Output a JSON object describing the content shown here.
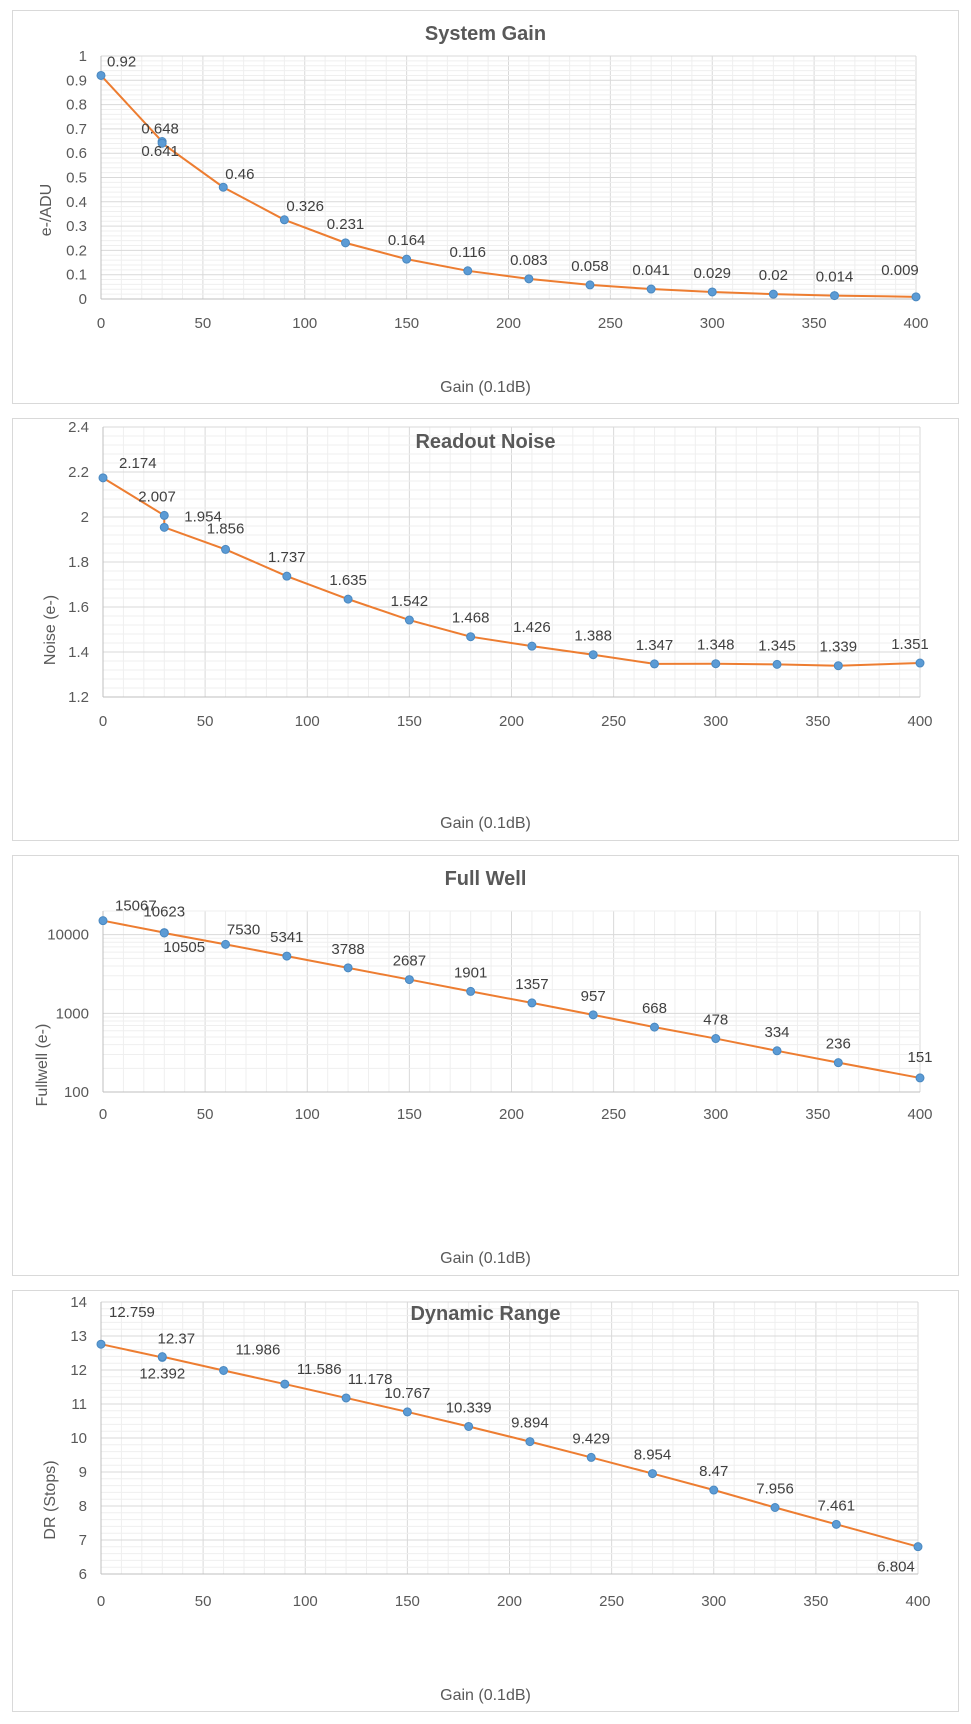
{
  "colors": {
    "line": "#ED7D31",
    "marker": "#5B9BD5",
    "grid": "#D9D9D9",
    "minor_grid": "#EFEFEF",
    "axis": "#BFBFBF",
    "text": "#595959"
  },
  "chart_data": [
    {
      "type": "line",
      "title": "System Gain",
      "xlabel": "Gain (0.1dB)",
      "ylabel": "e-/ADU",
      "xlim": [
        0,
        400
      ],
      "ylim": [
        0,
        1
      ],
      "xticks": [
        0,
        50,
        100,
        150,
        200,
        250,
        300,
        350,
        400
      ],
      "yticks": [
        0,
        0.1,
        0.2,
        0.3,
        0.4,
        0.5,
        0.6,
        0.7,
        0.8,
        0.9,
        1
      ],
      "ytick_labels": [
        "0",
        "0.1",
        "0.2",
        "0.3",
        "0.4",
        "0.5",
        "0.6",
        "0.7",
        "0.8",
        "0.9",
        "1"
      ],
      "grid": true,
      "x": [
        0,
        30,
        30,
        60,
        90,
        120,
        150,
        180,
        210,
        240,
        270,
        300,
        330,
        360,
        400
      ],
      "y": [
        0.92,
        0.648,
        0.641,
        0.46,
        0.326,
        0.231,
        0.164,
        0.116,
        0.083,
        0.058,
        0.041,
        0.029,
        0.02,
        0.014,
        0.009
      ],
      "labels": [
        "0.92",
        "0.648",
        "0.641",
        "0.46",
        "0.326",
        "0.231",
        "0.164",
        "0.116",
        "0.083",
        "0.058",
        "0.041",
        "0.029",
        "0.02",
        "0.014",
        "0.009"
      ]
    },
    {
      "type": "line",
      "title": "Readout Noise",
      "xlabel": "Gain (0.1dB)",
      "ylabel": "Noise (e-)",
      "xlim": [
        0,
        400
      ],
      "ylim": [
        1.2,
        2.4
      ],
      "xticks": [
        0,
        50,
        100,
        150,
        200,
        250,
        300,
        350,
        400
      ],
      "yticks": [
        1.2,
        1.4,
        1.6,
        1.8,
        2,
        2.2,
        2.4
      ],
      "ytick_labels": [
        "1.2",
        "1.4",
        "1.6",
        "1.8",
        "2",
        "2.2",
        "2.4"
      ],
      "grid": true,
      "x": [
        0,
        30,
        30,
        60,
        90,
        120,
        150,
        180,
        210,
        240,
        270,
        300,
        330,
        360,
        400
      ],
      "y": [
        2.174,
        2.007,
        1.954,
        1.856,
        1.737,
        1.635,
        1.542,
        1.468,
        1.426,
        1.388,
        1.347,
        1.348,
        1.345,
        1.339,
        1.351
      ],
      "labels": [
        "2.174",
        "2.007",
        "1.954",
        "1.856",
        "1.737",
        "1.635",
        "1.542",
        "1.468",
        "1.426",
        "1.388",
        "1.347",
        "1.348",
        "1.345",
        "1.339",
        "1.351"
      ]
    },
    {
      "type": "line",
      "title": "Full Well",
      "xlabel": "Gain (0.1dB)",
      "ylabel": "Fullwell (e-)",
      "xlim": [
        0,
        400
      ],
      "ylim": [
        100,
        20000
      ],
      "yscale": "log",
      "xticks": [
        0,
        50,
        100,
        150,
        200,
        250,
        300,
        350,
        400
      ],
      "yticks": [
        100,
        1000,
        10000
      ],
      "ytick_labels": [
        "100",
        "1000",
        "10000"
      ],
      "grid": true,
      "x": [
        0,
        30,
        30,
        60,
        90,
        120,
        150,
        180,
        210,
        240,
        270,
        300,
        330,
        360,
        400
      ],
      "y": [
        15067,
        10623,
        10505,
        7530,
        5341,
        3788,
        2687,
        1901,
        1357,
        957,
        668,
        478,
        334,
        236,
        151
      ],
      "labels": [
        "15067",
        "10623",
        "10505",
        "7530",
        "5341",
        "3788",
        "2687",
        "1901",
        "1357",
        "957",
        "668",
        "478",
        "334",
        "236",
        "151"
      ]
    },
    {
      "type": "line",
      "title": "Dynamic Range",
      "xlabel": "Gain (0.1dB)",
      "ylabel": "DR (Stops)",
      "xlim": [
        0,
        400
      ],
      "ylim": [
        6,
        14
      ],
      "xticks": [
        0,
        50,
        100,
        150,
        200,
        250,
        300,
        350,
        400
      ],
      "yticks": [
        6,
        7,
        8,
        9,
        10,
        11,
        12,
        13,
        14
      ],
      "ytick_labels": [
        "6",
        "7",
        "8",
        "9",
        "10",
        "11",
        "12",
        "13",
        "14"
      ],
      "grid": true,
      "x": [
        0,
        30,
        30,
        60,
        90,
        120,
        150,
        180,
        210,
        240,
        270,
        300,
        330,
        360,
        400
      ],
      "y": [
        12.759,
        12.37,
        12.392,
        11.986,
        11.586,
        11.178,
        10.767,
        10.339,
        9.894,
        9.429,
        8.954,
        8.47,
        7.956,
        7.461,
        6.804
      ],
      "labels": [
        "12.759",
        "12.37",
        "12.392",
        "11.986",
        "11.586",
        "11.178",
        "10.767",
        "10.339",
        "9.894",
        "9.429",
        "8.954",
        "8.47",
        "7.956",
        "7.461",
        "6.804"
      ]
    }
  ]
}
